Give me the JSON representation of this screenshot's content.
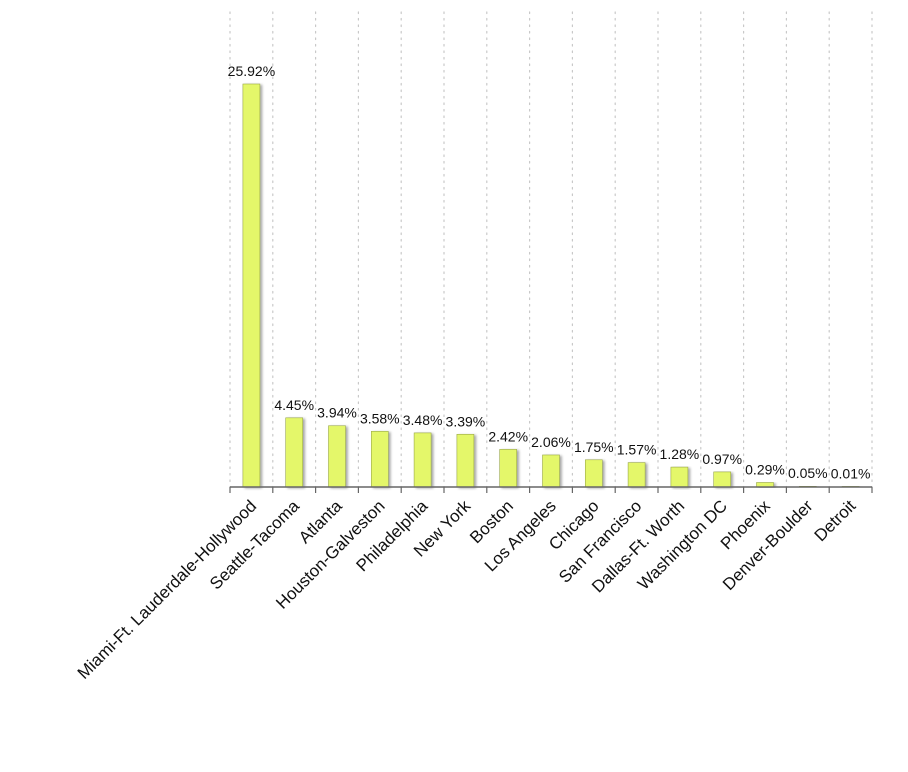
{
  "chart_data": {
    "type": "bar",
    "title": "",
    "xlabel": "",
    "ylabel": "",
    "categories": [
      "Miami-Ft. Lauderdale-Hollywood",
      "Seattle-Tacoma",
      "Atlanta",
      "Houston-Galveston",
      "Philadelphia",
      "New York",
      "Boston",
      "Los Angeles",
      "Chicago",
      "San Francisco",
      "Dallas-Ft. Worth",
      "Washington DC",
      "Phoenix",
      "Denver-Boulder",
      "Detroit"
    ],
    "values": [
      25.92,
      4.45,
      3.94,
      3.58,
      3.48,
      3.39,
      2.42,
      2.06,
      1.75,
      1.57,
      1.28,
      0.97,
      0.29,
      0.05,
      0.01
    ],
    "value_labels": [
      "25.92%",
      "4.45%",
      "3.94%",
      "3.58%",
      "3.48%",
      "3.39%",
      "2.42%",
      "2.06%",
      "1.75%",
      "1.57%",
      "1.28%",
      "0.97%",
      "0.29%",
      "0.05%",
      "0.01%"
    ],
    "ylim": [
      0,
      25.92
    ],
    "grid": "vertical-dotted",
    "legend": "none",
    "bar_color": "#e4f76a",
    "bar_edge_color": "#9aa84a",
    "grid_color": "#c8c8c8",
    "axis_color": "#666666"
  }
}
